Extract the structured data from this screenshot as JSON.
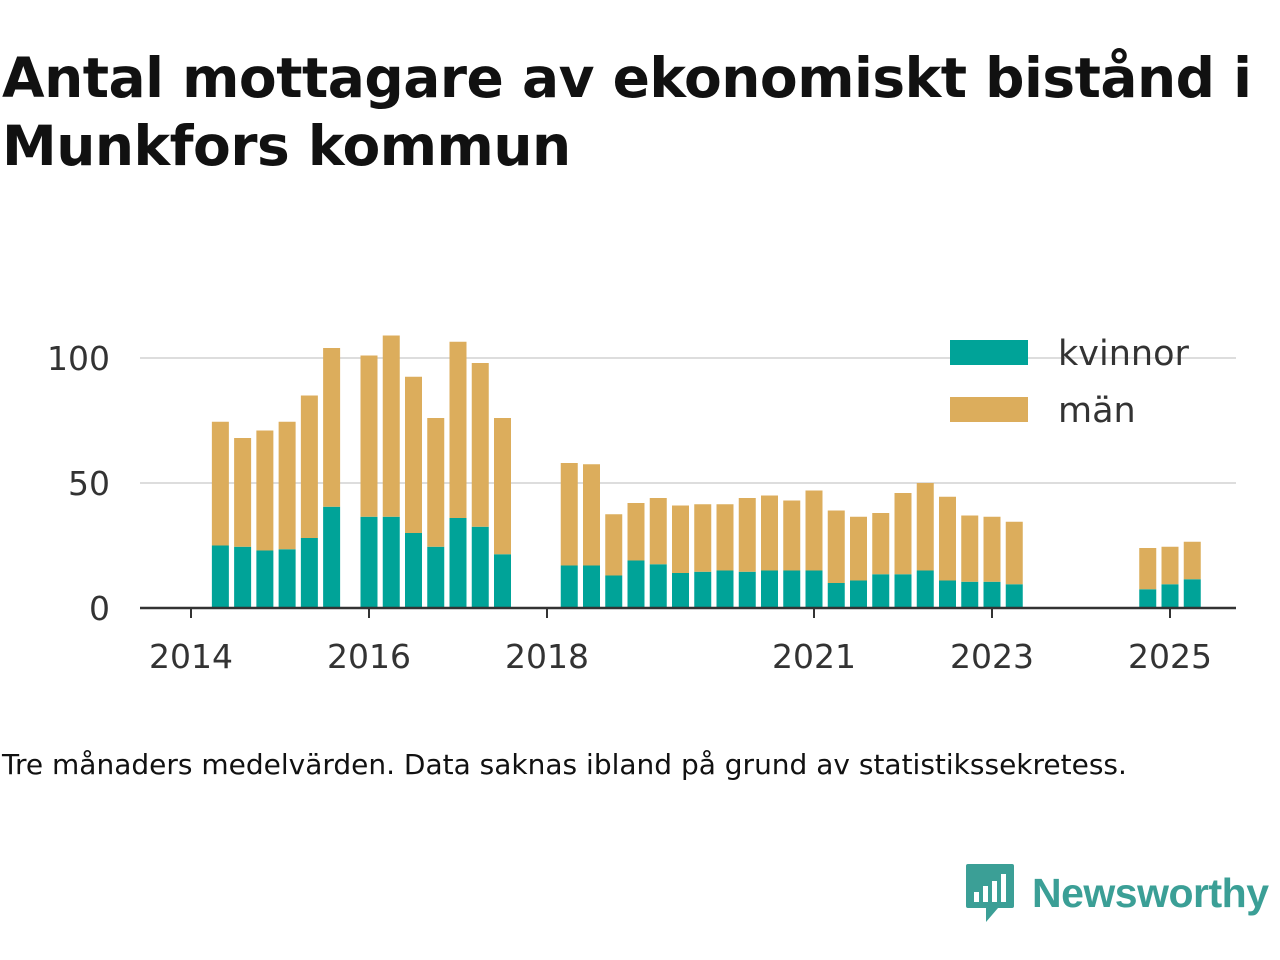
{
  "title": "Antal mottagare av ekonomiskt bistånd i Munkfors kommun",
  "caption": "Tre månaders medelvärden. Data saknas ibland på grund av statistikssekretess.",
  "brand": {
    "name": "Newsworthy",
    "color": "#3b9f96",
    "icon": "newsworthy-logo-icon"
  },
  "colors": {
    "kvinnor": "#00a398",
    "man": "#dcad5c",
    "grid": "#dddddd",
    "axis": "#333333"
  },
  "chart_data": {
    "type": "bar",
    "stacked": true,
    "title": "Antal mottagare av ekonomiskt bistånd i Munkfors kommun",
    "xlabel": "",
    "ylabel": "",
    "ylim": [
      0,
      110
    ],
    "yticks": [
      0,
      50,
      100
    ],
    "xticks": [
      "2014",
      "2016",
      "2018",
      "2021",
      "2023",
      "2025"
    ],
    "x_year_range": [
      2013.5,
      2025.8
    ],
    "grid": true,
    "legend": "top-right",
    "x": [
      2014.33,
      2014.58,
      2014.83,
      2015.08,
      2015.33,
      2015.58,
      2016.0,
      2016.25,
      2016.5,
      2016.75,
      2017.0,
      2017.25,
      2017.5,
      2018.25,
      2018.5,
      2018.75,
      2019.0,
      2019.25,
      2019.5,
      2019.75,
      2020.0,
      2020.25,
      2020.5,
      2020.75,
      2021.0,
      2021.25,
      2021.5,
      2021.75,
      2022.0,
      2022.25,
      2022.5,
      2022.75,
      2023.0,
      2023.25,
      2024.75,
      2025.0,
      2025.25
    ],
    "series": [
      {
        "name": "kvinnor",
        "values": [
          25,
          24.5,
          23,
          23.5,
          28,
          40.5,
          36.5,
          36.5,
          30,
          24.5,
          36,
          32.5,
          21.5,
          17,
          17,
          13,
          19,
          17.5,
          14,
          14.5,
          15,
          14.5,
          15,
          15,
          15,
          10,
          11,
          13.5,
          13.5,
          15,
          11,
          10.5,
          10.5,
          9.5,
          7.5,
          9.5,
          11.5
        ]
      },
      {
        "name": "män",
        "values": [
          49.5,
          43.5,
          48,
          51,
          57,
          63.5,
          64.5,
          72.5,
          62.5,
          51.5,
          70.5,
          65.5,
          54.5,
          41,
          40.5,
          24.5,
          23,
          26.5,
          27,
          27,
          26.5,
          29.5,
          30,
          28,
          32,
          29,
          25.5,
          24.5,
          32.5,
          35,
          33.5,
          26.5,
          26,
          25,
          16.5,
          15,
          15
        ]
      }
    ]
  }
}
